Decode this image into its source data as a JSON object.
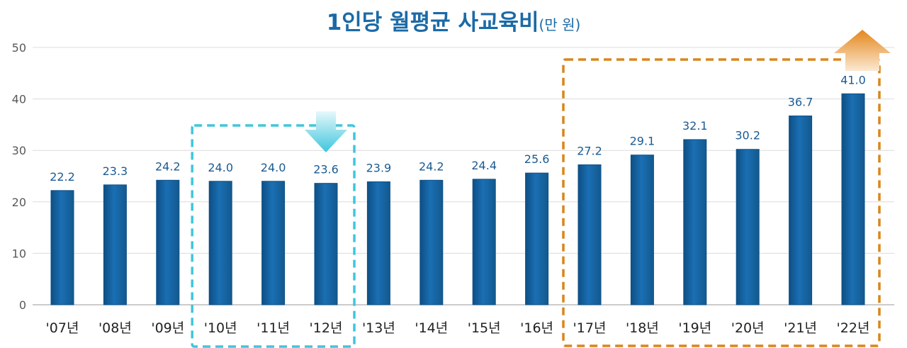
{
  "chart_data": {
    "type": "bar",
    "title": "1인당 월평균 사교육비",
    "unit": "(만 원)",
    "categories": [
      "'07년",
      "'08년",
      "'09년",
      "'10년",
      "'11년",
      "'12년",
      "'13년",
      "'14년",
      "'15년",
      "'16년",
      "'17년",
      "'18년",
      "'19년",
      "'20년",
      "'21년",
      "'22년"
    ],
    "values": [
      22.2,
      23.3,
      24.2,
      24.0,
      24.0,
      23.6,
      23.9,
      24.2,
      24.4,
      25.6,
      27.2,
      29.1,
      32.1,
      30.2,
      36.7,
      41.0
    ],
    "data_labels": [
      "22.2",
      "23.3",
      "24.2",
      "24.0",
      "24.0",
      "23.6",
      "23.9",
      "24.2",
      "24.4",
      "25.6",
      "27.2",
      "29.1",
      "32.1",
      "30.2",
      "36.7",
      "41.0"
    ],
    "yticks": [
      0,
      10,
      20,
      30,
      40,
      50
    ],
    "ylim": [
      0,
      50
    ],
    "grid": true,
    "colors": {
      "bar": "#1a6fb3",
      "bar_dark": "#0e4f85",
      "label": "#1b5a92",
      "title": "#1b6aa6",
      "decline_box": "#3ec6dc",
      "increase_box": "#d9861a"
    },
    "annotations": [
      {
        "type": "dashed-box",
        "name": "decline-period",
        "range": [
          "'10년",
          "'12년"
        ],
        "icon": "down-arrow-icon"
      },
      {
        "type": "dashed-box",
        "name": "increase-period",
        "range": [
          "'17년",
          "'22년"
        ],
        "icon": "up-arrow-icon"
      }
    ]
  }
}
